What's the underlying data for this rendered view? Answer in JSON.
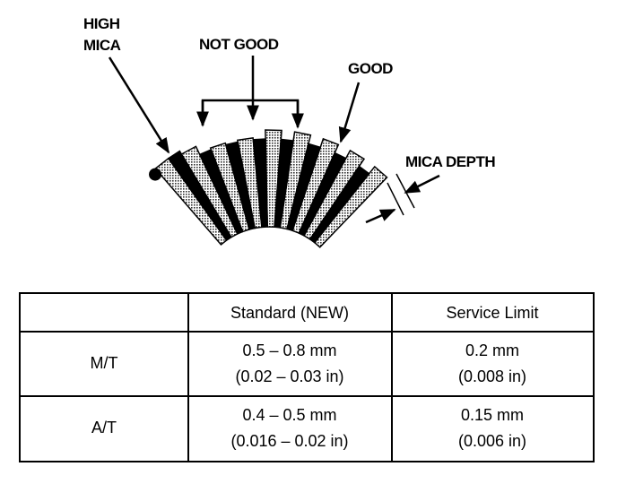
{
  "labels": {
    "high_mica": [
      "HIGH",
      "MICA"
    ],
    "not_good": "NOT GOOD",
    "good": "GOOD",
    "mica_depth": "MICA DEPTH"
  },
  "table": {
    "header": [
      "Standard (NEW)",
      "Service Limit"
    ],
    "rows": [
      {
        "label": "M/T",
        "cells": [
          [
            "0.5 – 0.8 mm",
            "(0.02 – 0.03 in)"
          ],
          [
            "0.2 mm",
            "(0.008 in)"
          ]
        ]
      },
      {
        "label": "A/T",
        "cells": [
          [
            "0.4 – 0.5 mm",
            "(0.016 – 0.02 in)"
          ],
          [
            "0.15 mm",
            "(0.006 in)"
          ]
        ]
      }
    ]
  }
}
